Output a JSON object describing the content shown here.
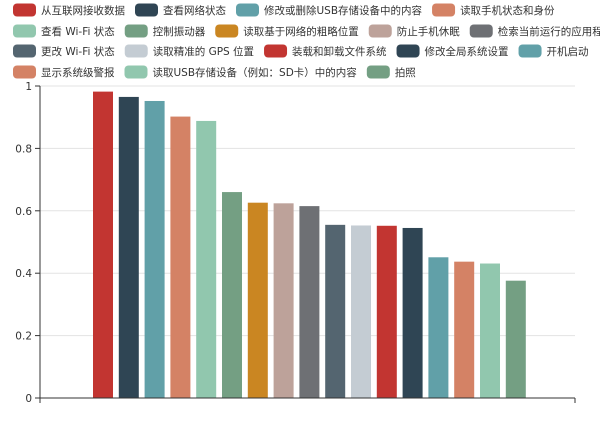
{
  "chart_data": {
    "type": "bar",
    "categories": [
      "从互联网接收数据",
      "查看网络状态",
      "修改或删除USB存储设备中的内容",
      "读取手机状态和身份",
      "查看 Wi-Fi 状态",
      "控制振动器",
      "读取基于网络的粗略位置",
      "防止手机休眠",
      "检索当前运行的应用程序",
      "更改 Wi-Fi 状态",
      "读取精准的 GPS 位置",
      "装载和卸载文件系统",
      "修改全局系统设置",
      "开机启动",
      "显示系统级警报",
      "读取USB存储设备（例如：SD卡）中的内容",
      "拍照"
    ],
    "values": [
      0.982,
      0.965,
      0.952,
      0.902,
      0.888,
      0.66,
      0.626,
      0.624,
      0.615,
      0.555,
      0.553,
      0.552,
      0.545,
      0.451,
      0.437,
      0.431,
      0.376
    ],
    "colors": [
      "#c23531",
      "#2f4554",
      "#61a0a8",
      "#d48265",
      "#91c7ae",
      "#749f83",
      "#ca8622",
      "#bda29a",
      "#6e7074",
      "#546570",
      "#c4ccd3",
      "#c23531",
      "#2f4554",
      "#61a0a8",
      "#d48265",
      "#91c7ae",
      "#749f83"
    ],
    "ylim": [
      0,
      1
    ],
    "yticks": [
      "0",
      "0.2",
      "0.4",
      "0.6",
      "0.8",
      "1"
    ],
    "legend_placement": "top",
    "grid": true
  }
}
